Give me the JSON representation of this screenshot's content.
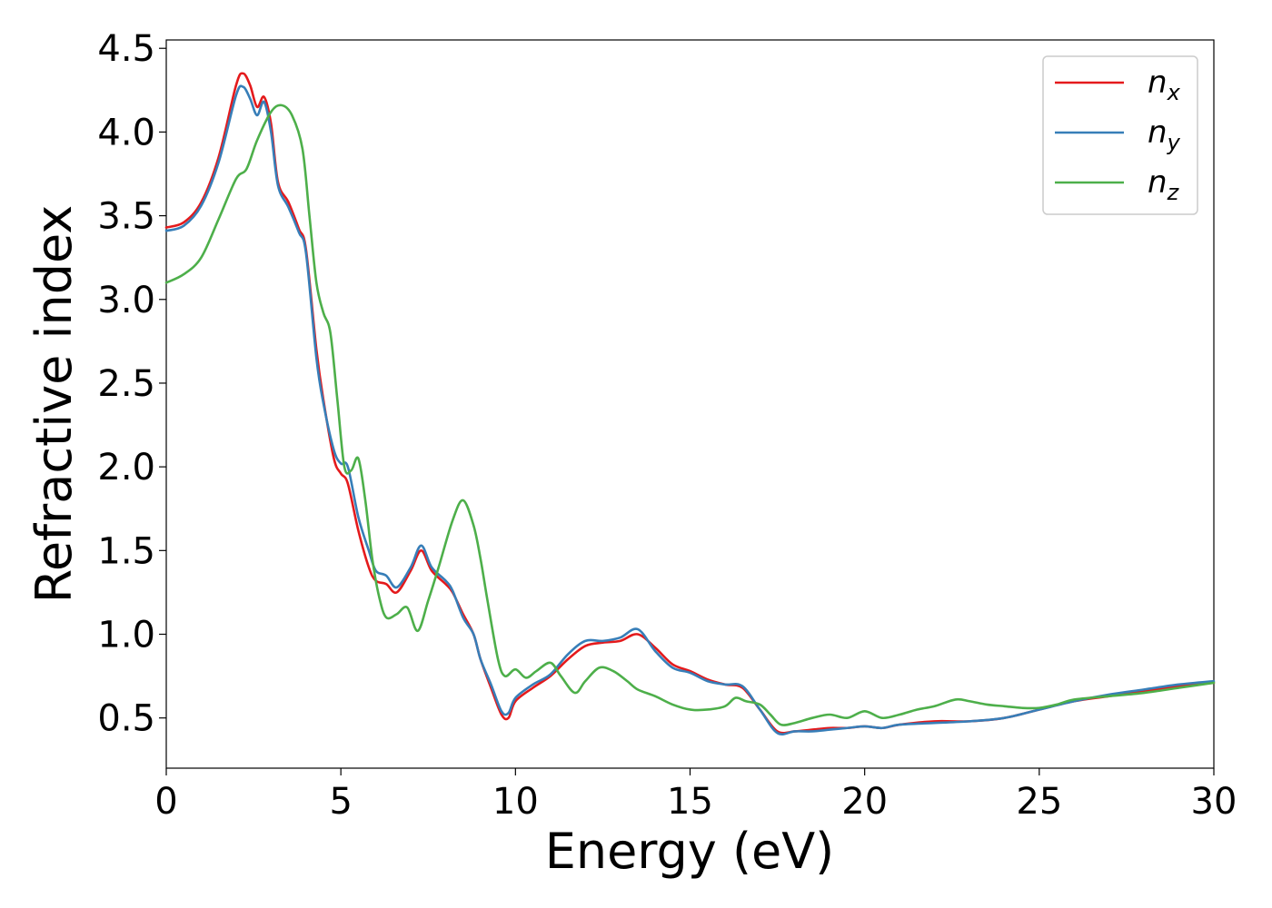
{
  "chart_data": {
    "type": "line",
    "xlabel": "Energy (eV)",
    "ylabel": "Refractive index",
    "xlim": [
      0,
      30
    ],
    "ylim": [
      0.2,
      4.55
    ],
    "xticks": [
      0,
      5,
      10,
      15,
      20,
      25,
      30
    ],
    "xtick_labels": [
      "0",
      "5",
      "10",
      "15",
      "20",
      "25",
      "30"
    ],
    "yticks": [
      0.5,
      1.0,
      1.5,
      2.0,
      2.5,
      3.0,
      3.5,
      4.0,
      4.5
    ],
    "ytick_labels": [
      "0.5",
      "1.0",
      "1.5",
      "2.0",
      "2.5",
      "3.0",
      "3.5",
      "4.0",
      "4.5"
    ],
    "grid": false,
    "legend_position": "top-right",
    "series": [
      {
        "base": "n",
        "sub": "x",
        "color": "#e41a1c",
        "points": [
          [
            0,
            3.43
          ],
          [
            0.5,
            3.46
          ],
          [
            1.0,
            3.58
          ],
          [
            1.5,
            3.85
          ],
          [
            2.0,
            4.28
          ],
          [
            2.2,
            4.35
          ],
          [
            2.4,
            4.28
          ],
          [
            2.6,
            4.15
          ],
          [
            2.8,
            4.21
          ],
          [
            3.0,
            4.05
          ],
          [
            3.2,
            3.7
          ],
          [
            3.5,
            3.58
          ],
          [
            3.8,
            3.42
          ],
          [
            4.0,
            3.3
          ],
          [
            4.3,
            2.7
          ],
          [
            4.5,
            2.4
          ],
          [
            4.8,
            2.05
          ],
          [
            5.0,
            1.96
          ],
          [
            5.2,
            1.9
          ],
          [
            5.5,
            1.62
          ],
          [
            5.8,
            1.4
          ],
          [
            6.0,
            1.32
          ],
          [
            6.3,
            1.3
          ],
          [
            6.6,
            1.25
          ],
          [
            7.0,
            1.38
          ],
          [
            7.3,
            1.5
          ],
          [
            7.6,
            1.38
          ],
          [
            8.0,
            1.3
          ],
          [
            8.2,
            1.25
          ],
          [
            8.5,
            1.12
          ],
          [
            8.8,
            1.0
          ],
          [
            9.0,
            0.85
          ],
          [
            9.3,
            0.68
          ],
          [
            9.6,
            0.52
          ],
          [
            9.8,
            0.5
          ],
          [
            10.0,
            0.6
          ],
          [
            10.5,
            0.68
          ],
          [
            11.0,
            0.75
          ],
          [
            11.5,
            0.85
          ],
          [
            12.0,
            0.93
          ],
          [
            12.5,
            0.95
          ],
          [
            13.0,
            0.96
          ],
          [
            13.5,
            1.0
          ],
          [
            14.0,
            0.92
          ],
          [
            14.5,
            0.82
          ],
          [
            15.0,
            0.78
          ],
          [
            15.5,
            0.73
          ],
          [
            16.0,
            0.7
          ],
          [
            16.5,
            0.68
          ],
          [
            17.0,
            0.55
          ],
          [
            17.5,
            0.42
          ],
          [
            18.0,
            0.42
          ],
          [
            18.5,
            0.43
          ],
          [
            19.0,
            0.44
          ],
          [
            19.5,
            0.44
          ],
          [
            20.0,
            0.45
          ],
          [
            20.5,
            0.44
          ],
          [
            21.0,
            0.46
          ],
          [
            22.0,
            0.48
          ],
          [
            23.0,
            0.48
          ],
          [
            24.0,
            0.5
          ],
          [
            25.0,
            0.55
          ],
          [
            26.0,
            0.6
          ],
          [
            27.0,
            0.63
          ],
          [
            28.0,
            0.66
          ],
          [
            29.0,
            0.69
          ],
          [
            30.0,
            0.71
          ]
        ]
      },
      {
        "base": "n",
        "sub": "y",
        "color": "#377eb8",
        "points": [
          [
            0,
            3.41
          ],
          [
            0.5,
            3.44
          ],
          [
            1.0,
            3.56
          ],
          [
            1.5,
            3.82
          ],
          [
            2.0,
            4.22
          ],
          [
            2.2,
            4.27
          ],
          [
            2.4,
            4.2
          ],
          [
            2.6,
            4.1
          ],
          [
            2.8,
            4.18
          ],
          [
            3.0,
            4.0
          ],
          [
            3.2,
            3.68
          ],
          [
            3.5,
            3.55
          ],
          [
            3.8,
            3.4
          ],
          [
            4.0,
            3.28
          ],
          [
            4.3,
            2.65
          ],
          [
            4.5,
            2.38
          ],
          [
            4.8,
            2.1
          ],
          [
            5.0,
            2.02
          ],
          [
            5.2,
            2.0
          ],
          [
            5.5,
            1.7
          ],
          [
            5.8,
            1.5
          ],
          [
            6.0,
            1.38
          ],
          [
            6.3,
            1.35
          ],
          [
            6.6,
            1.28
          ],
          [
            7.0,
            1.4
          ],
          [
            7.3,
            1.53
          ],
          [
            7.6,
            1.4
          ],
          [
            8.0,
            1.32
          ],
          [
            8.2,
            1.26
          ],
          [
            8.5,
            1.1
          ],
          [
            8.8,
            1.0
          ],
          [
            9.0,
            0.85
          ],
          [
            9.3,
            0.7
          ],
          [
            9.6,
            0.54
          ],
          [
            9.8,
            0.53
          ],
          [
            10.0,
            0.62
          ],
          [
            10.5,
            0.7
          ],
          [
            11.0,
            0.76
          ],
          [
            11.5,
            0.88
          ],
          [
            12.0,
            0.96
          ],
          [
            12.5,
            0.96
          ],
          [
            13.0,
            0.98
          ],
          [
            13.5,
            1.03
          ],
          [
            14.0,
            0.9
          ],
          [
            14.5,
            0.8
          ],
          [
            15.0,
            0.77
          ],
          [
            15.5,
            0.72
          ],
          [
            16.0,
            0.7
          ],
          [
            16.5,
            0.69
          ],
          [
            17.0,
            0.55
          ],
          [
            17.5,
            0.41
          ],
          [
            18.0,
            0.42
          ],
          [
            18.5,
            0.42
          ],
          [
            19.0,
            0.43
          ],
          [
            19.5,
            0.44
          ],
          [
            20.0,
            0.45
          ],
          [
            20.5,
            0.44
          ],
          [
            21.0,
            0.46
          ],
          [
            22.0,
            0.47
          ],
          [
            23.0,
            0.48
          ],
          [
            24.0,
            0.5
          ],
          [
            25.0,
            0.55
          ],
          [
            26.0,
            0.6
          ],
          [
            27.0,
            0.64
          ],
          [
            28.0,
            0.67
          ],
          [
            29.0,
            0.7
          ],
          [
            30.0,
            0.72
          ]
        ]
      },
      {
        "base": "n",
        "sub": "z",
        "color": "#4daf4a",
        "points": [
          [
            0,
            3.1
          ],
          [
            0.5,
            3.15
          ],
          [
            1.0,
            3.25
          ],
          [
            1.5,
            3.48
          ],
          [
            2.0,
            3.72
          ],
          [
            2.3,
            3.78
          ],
          [
            2.6,
            3.95
          ],
          [
            3.0,
            4.12
          ],
          [
            3.3,
            4.16
          ],
          [
            3.6,
            4.1
          ],
          [
            3.9,
            3.9
          ],
          [
            4.1,
            3.5
          ],
          [
            4.3,
            3.1
          ],
          [
            4.5,
            2.92
          ],
          [
            4.7,
            2.8
          ],
          [
            4.9,
            2.4
          ],
          [
            5.1,
            2.0
          ],
          [
            5.3,
            1.98
          ],
          [
            5.5,
            2.05
          ],
          [
            5.7,
            1.8
          ],
          [
            5.9,
            1.45
          ],
          [
            6.1,
            1.22
          ],
          [
            6.3,
            1.1
          ],
          [
            6.6,
            1.12
          ],
          [
            6.9,
            1.16
          ],
          [
            7.2,
            1.02
          ],
          [
            7.5,
            1.2
          ],
          [
            7.8,
            1.4
          ],
          [
            8.2,
            1.68
          ],
          [
            8.5,
            1.8
          ],
          [
            8.8,
            1.65
          ],
          [
            9.0,
            1.45
          ],
          [
            9.2,
            1.2
          ],
          [
            9.5,
            0.85
          ],
          [
            9.7,
            0.75
          ],
          [
            10.0,
            0.79
          ],
          [
            10.3,
            0.74
          ],
          [
            10.6,
            0.78
          ],
          [
            11.0,
            0.83
          ],
          [
            11.3,
            0.75
          ],
          [
            11.7,
            0.65
          ],
          [
            12.0,
            0.72
          ],
          [
            12.4,
            0.8
          ],
          [
            12.8,
            0.78
          ],
          [
            13.2,
            0.72
          ],
          [
            13.5,
            0.67
          ],
          [
            14.0,
            0.63
          ],
          [
            14.5,
            0.58
          ],
          [
            15.0,
            0.55
          ],
          [
            15.5,
            0.55
          ],
          [
            16.0,
            0.57
          ],
          [
            16.3,
            0.62
          ],
          [
            16.6,
            0.6
          ],
          [
            17.0,
            0.58
          ],
          [
            17.3,
            0.52
          ],
          [
            17.6,
            0.46
          ],
          [
            18.0,
            0.47
          ],
          [
            18.5,
            0.5
          ],
          [
            19.0,
            0.52
          ],
          [
            19.5,
            0.5
          ],
          [
            20.0,
            0.54
          ],
          [
            20.5,
            0.5
          ],
          [
            21.0,
            0.52
          ],
          [
            21.5,
            0.55
          ],
          [
            22.0,
            0.57
          ],
          [
            22.6,
            0.61
          ],
          [
            23.0,
            0.6
          ],
          [
            23.5,
            0.58
          ],
          [
            24.0,
            0.57
          ],
          [
            24.5,
            0.56
          ],
          [
            25.0,
            0.56
          ],
          [
            25.5,
            0.58
          ],
          [
            26.0,
            0.61
          ],
          [
            27.0,
            0.63
          ],
          [
            28.0,
            0.65
          ],
          [
            29.0,
            0.68
          ],
          [
            30.0,
            0.71
          ]
        ]
      }
    ]
  }
}
